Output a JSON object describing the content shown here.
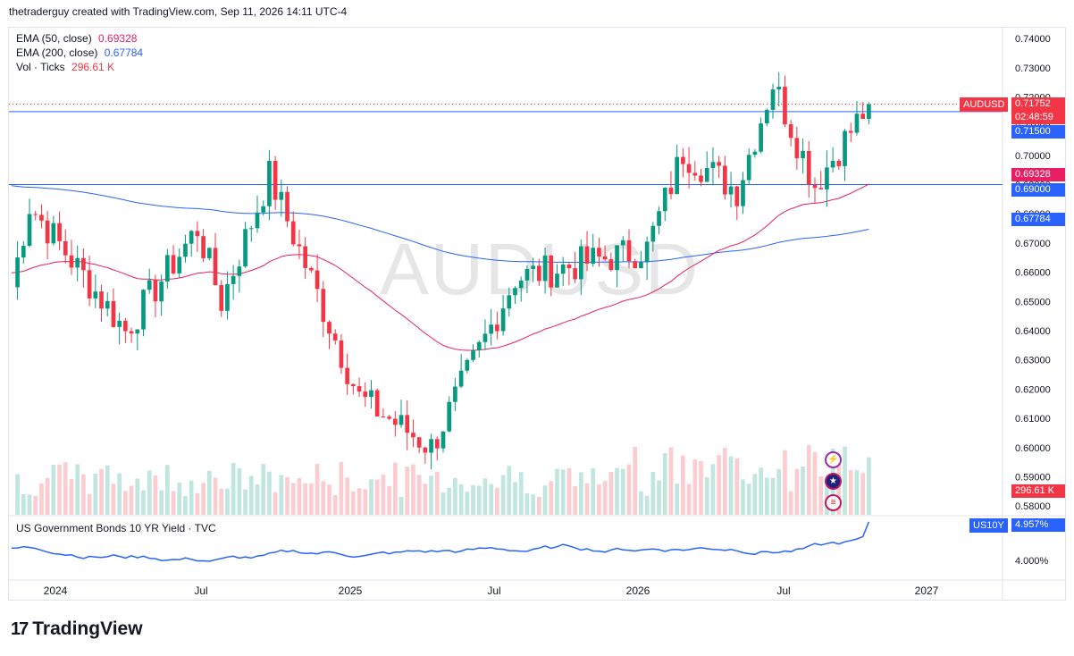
{
  "header": {
    "attribution": "thetraderguy created with TradingView.com, Sep 11, 2026 14:11 UTC-4"
  },
  "watermark": "AUDUSD",
  "legend": [
    {
      "label": "EMA (50, close)",
      "value": "0.69328",
      "color": "#e91e63"
    },
    {
      "label": "EMA (200, close)",
      "value": "0.67784",
      "color": "#2962ff"
    },
    {
      "label": "Vol · Ticks",
      "value": "296.61 K",
      "color": "#f23645"
    }
  ],
  "subpane": {
    "label": "US Government Bonds 10 YR Yield · TVC",
    "symbol_tag": "US10Y",
    "value_tag": "4.957%",
    "tick": "4.000%"
  },
  "price_axis": {
    "ticks": [
      "0.74000",
      "0.73000",
      "0.72000",
      "0.71000",
      "0.70000",
      "0.69000",
      "0.68000",
      "0.67000",
      "0.66000",
      "0.65000",
      "0.64000",
      "0.63000",
      "0.62000",
      "0.61000",
      "0.60000",
      "0.59000",
      "0.58000"
    ],
    "tags": {
      "symbol": "AUDUSD",
      "last_price": "0.71752",
      "countdown": "02:48:59",
      "level_high": "0.71500",
      "ema50": "0.69328",
      "level_low": "0.69000",
      "ema200": "0.67784",
      "volume": "296.61 K"
    }
  },
  "time_axis": {
    "labels": [
      "2024",
      "Jul",
      "2025",
      "Jul",
      "2026",
      "Jul",
      "2027"
    ]
  },
  "footer": {
    "brand": "TradingView"
  },
  "colors": {
    "up": "#089981",
    "down": "#f23645",
    "ema50": "#e91e63",
    "ema200": "#2962ff",
    "hline": "#2962ff",
    "yield_line": "#2962ff"
  },
  "chart_data": {
    "type": "candlestick",
    "symbol": "AUDUSD",
    "timeframe": "weekly",
    "x_range": [
      "2023-12",
      "2027-02"
    ],
    "ylim": [
      0.577,
      0.744
    ],
    "horizontal_levels": [
      0.715,
      0.69
    ],
    "ohlc_anchors": [
      {
        "date": "2023-12-04",
        "price": 0.655
      },
      {
        "date": "2023-12-25",
        "price": 0.683
      },
      {
        "date": "2024-04-15",
        "price": 0.64
      },
      {
        "date": "2024-07-08",
        "price": 0.675
      },
      {
        "date": "2024-08-05",
        "price": 0.65
      },
      {
        "date": "2024-09-30",
        "price": 0.693
      },
      {
        "date": "2025-01-13",
        "price": 0.617
      },
      {
        "date": "2025-04-07",
        "price": 0.6
      },
      {
        "date": "2025-07-14",
        "price": 0.658
      },
      {
        "date": "2025-12-15",
        "price": 0.668
      },
      {
        "date": "2026-01-26",
        "price": 0.701
      },
      {
        "date": "2026-03-30",
        "price": 0.688
      },
      {
        "date": "2026-05-11",
        "price": 0.725
      },
      {
        "date": "2026-06-29",
        "price": 0.69
      },
      {
        "date": "2026-08-31",
        "price": 0.7175
      }
    ],
    "series": [
      {
        "name": "EMA (50, close)",
        "last": 0.69328
      },
      {
        "name": "EMA (200, close)",
        "last": 0.67784
      },
      {
        "name": "Vol · Ticks",
        "last": 296610
      }
    ],
    "yield_series": {
      "name": "US Government Bonds 10 YR Yield",
      "last": 4.957
    }
  }
}
